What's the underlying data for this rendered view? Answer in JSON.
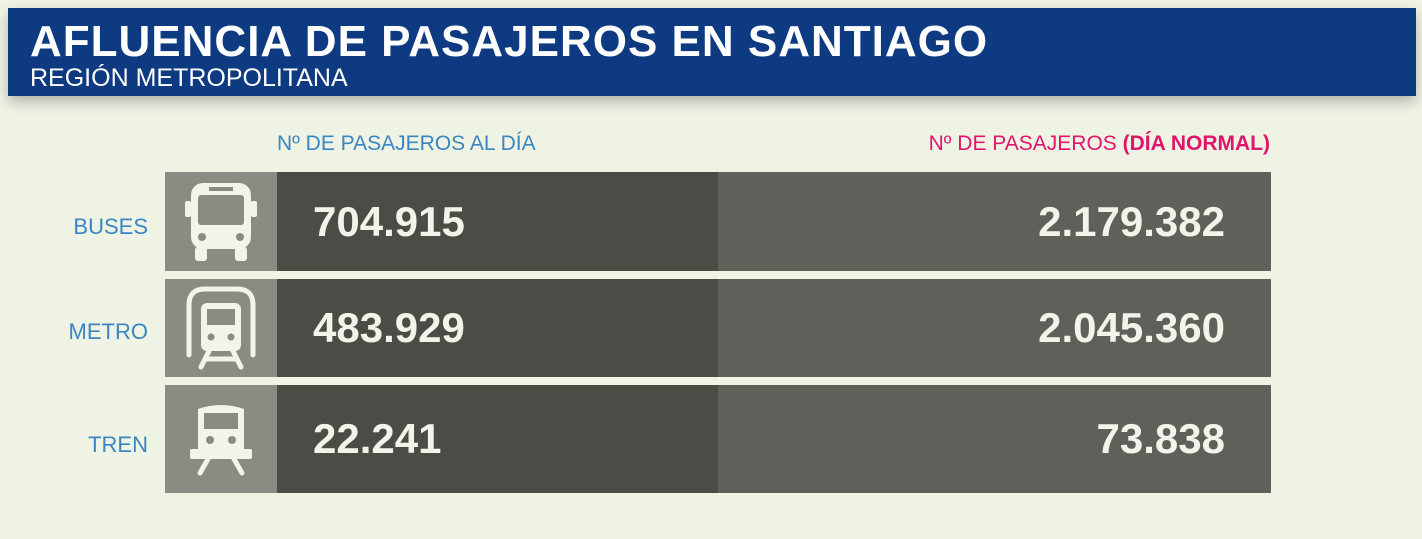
{
  "header": {
    "title": "AFLUENCIA DE PASAJEROS EN SANTIAGO",
    "subtitle": "REGIÓN METROPOLITANA"
  },
  "colors": {
    "header_bg": "#0d3a80",
    "label_blue": "#3a86c4",
    "accent_pink": "#e0156e",
    "background": "#eef3e4"
  },
  "chart_data": {
    "type": "table",
    "columns": {
      "col1": "Nº DE PASAJEROS AL DÍA",
      "col2_prefix": "Nº DE PASAJEROS",
      "col2_highlight": "(DÍA NORMAL)"
    },
    "rows": [
      {
        "label": "BUSES",
        "icon": "bus-icon",
        "per_day": "704.915",
        "normal_day": "2.179.382"
      },
      {
        "label": "METRO",
        "icon": "metro-icon",
        "per_day": "483.929",
        "normal_day": "2.045.360"
      },
      {
        "label": "TREN",
        "icon": "train-icon",
        "per_day": "22.241",
        "normal_day": "73.838"
      }
    ]
  }
}
